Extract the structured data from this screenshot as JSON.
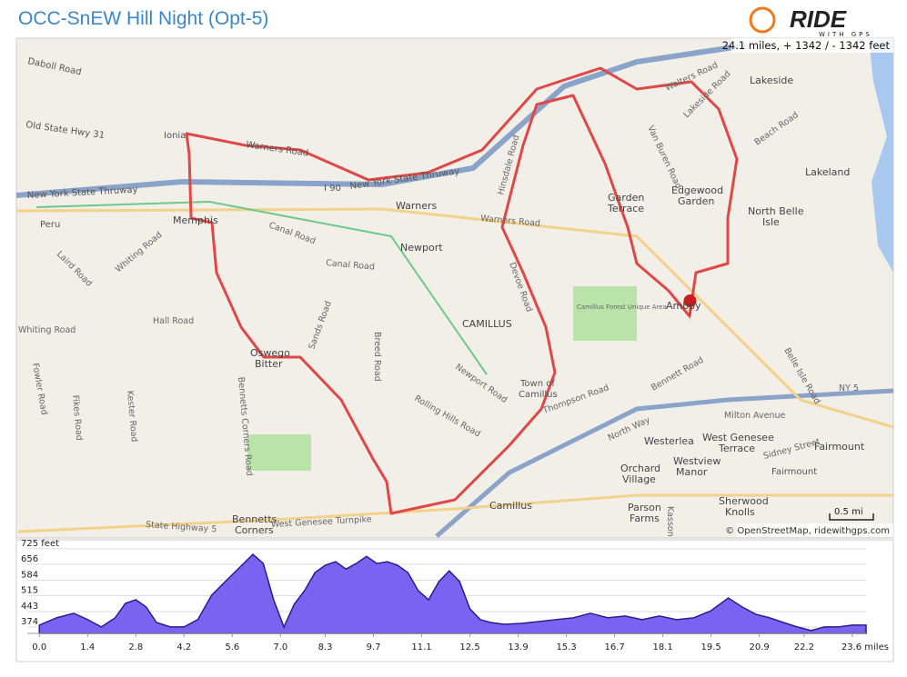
{
  "header": {
    "title": "OCC-SnEW Hill Night (Opt-5)",
    "logo": "RIDE",
    "logo_sub": "WITH GPS",
    "stats": "24.1 miles, + 1342 / - 1342 feet"
  },
  "map": {
    "labels": [
      "Daboll Road",
      "Old State Hwy 31",
      "Ionia",
      "Warners Road",
      "New York State Thruway",
      "I 90",
      "New York State Thruway",
      "Peru",
      "Memphis",
      "Canal Road",
      "Newport",
      "Laird Road",
      "Whiting Road",
      "Hall Road",
      "CAMILLUS",
      "Sands Road",
      "Oswego",
      "Bitter",
      "Breed Road",
      "Fowler Road",
      "Fikes Road",
      "Kester Road",
      "Bennetts Corners Road",
      "Rolling Hills Road",
      "Newport Road",
      "Town of",
      "Camillus",
      "Thompson Road",
      "Bennett Road",
      "Milton Avenue",
      "West Genesee",
      "Terrace",
      "Fairmount",
      "Westerlea",
      "Orchard",
      "Village",
      "Westview",
      "Manor",
      "Parson",
      "Farms",
      "Sherwood",
      "Knolls",
      "Bennetts",
      "Corners",
      "West Genesee Turnpike",
      "State Highway 5",
      "Camillus",
      "Amboy",
      "Lakeside",
      "Lakeland",
      "Edgewood",
      "Garden",
      "Garden",
      "Terrace",
      "North Belle",
      "Isle",
      "Beach Road",
      "Lakeside Road",
      "Van Buren Road",
      "Warners",
      "Devoe Road",
      "Hinsdale Road",
      "Walters Road",
      "NY 5",
      "Warners Road",
      "Canal Road",
      "Kasson",
      "North Way",
      "Sidney Street",
      "Belle Isle Road",
      "Camillus Forest Unique Area",
      "Fairmount",
      "Whiting Road"
    ],
    "scale": "0.5 mi",
    "attribution": "© OpenStreetMap, ridewithgps.com"
  },
  "chart_data": {
    "type": "area",
    "color": "#7b63f2",
    "x": [
      0,
      0.5,
      1.0,
      1.4,
      1.8,
      2.2,
      2.5,
      2.8,
      3.1,
      3.4,
      3.8,
      4.2,
      4.6,
      5.0,
      5.4,
      5.8,
      6.2,
      6.5,
      6.8,
      7.1,
      7.4,
      7.7,
      8.0,
      8.3,
      8.6,
      8.9,
      9.2,
      9.5,
      9.8,
      10.1,
      10.4,
      10.7,
      11.0,
      11.3,
      11.6,
      11.9,
      12.2,
      12.5,
      12.8,
      13.1,
      13.5,
      14.0,
      14.5,
      15.0,
      15.5,
      16.0,
      16.5,
      17.0,
      17.5,
      18.0,
      18.5,
      19.0,
      19.5,
      20.0,
      20.4,
      20.8,
      21.2,
      21.6,
      22.0,
      22.4,
      22.8,
      23.2,
      23.6,
      24.0
    ],
    "values": [
      382,
      415,
      435,
      407,
      374,
      415,
      480,
      496,
      464,
      394,
      374,
      374,
      407,
      516,
      578,
      639,
      700,
      659,
      496,
      374,
      476,
      537,
      618,
      651,
      667,
      634,
      659,
      691,
      659,
      667,
      651,
      618,
      537,
      496,
      578,
      626,
      578,
      455,
      407,
      394,
      386,
      390,
      398,
      407,
      415,
      435,
      415,
      423,
      407,
      423,
      407,
      415,
      447,
      504,
      464,
      431,
      415,
      394,
      374,
      358,
      374,
      374,
      382,
      382
    ],
    "xlim": [
      -0.35,
      24.0
    ],
    "ylim": [
      345,
      741
    ],
    "xticks": [
      {
        "value": 0,
        "label": "0.0"
      },
      1.4,
      2.8,
      4.2,
      5.6,
      {
        "value": 7,
        "label": "7.0"
      },
      8.3,
      9.7,
      11.1,
      12.5,
      13.9,
      15.3,
      16.7,
      18.1,
      19.5,
      20.9,
      22.2,
      {
        "value": 23.6,
        "label": "23.6 miles"
      }
    ],
    "yticks": [
      374,
      443,
      515,
      584,
      656,
      {
        "value": 725,
        "label": "725 feet"
      }
    ],
    "grid": true
  }
}
